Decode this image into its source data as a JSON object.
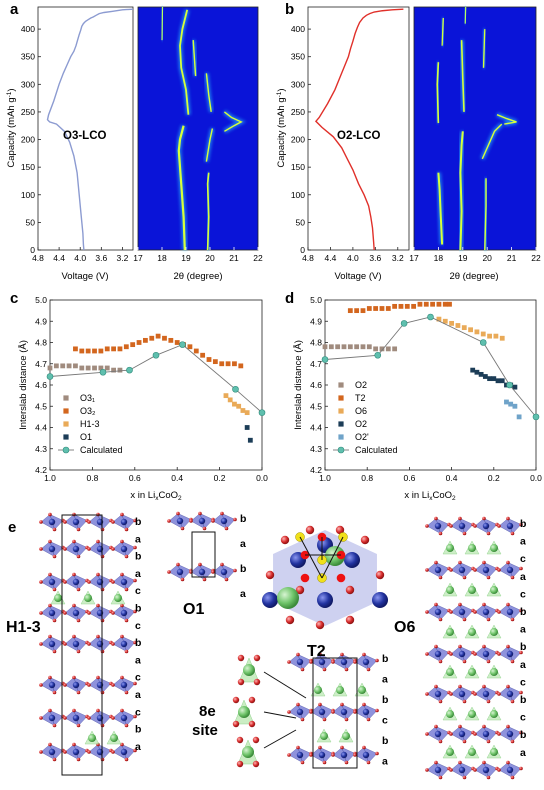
{
  "panels": {
    "a": {
      "letter": "a",
      "sample": "O3-LCO",
      "voltage_xlabel": "Voltage (V)",
      "xrd_xlabel": "2θ (degree)"
    },
    "b": {
      "letter": "b",
      "sample": "O2-LCO",
      "voltage_xlabel": "Voltage (V)",
      "xrd_xlabel": "2θ (degree)"
    },
    "c": {
      "letter": "c"
    },
    "d": {
      "letter": "d"
    },
    "e": {
      "letter": "e"
    }
  },
  "colors": {
    "o3_curve": "#8c9bd1",
    "o2_curve": "#e0302a",
    "xrd_bg": "#0a14d8",
    "calculated": "#5fbfae",
    "oxygen": "#d52a2a",
    "cobalt": "#2233a0",
    "lithium": "#6fc46a",
    "octa": "#7b7fd6"
  },
  "structure_labels": {
    "h13": "H1-3",
    "o1": "O1",
    "t2": "T2",
    "o6": "O6",
    "site_line1": "8e",
    "site_line2": "site",
    "h13_stack": [
      "b",
      "a",
      "b",
      "a",
      "c",
      "b",
      "c",
      "b",
      "a",
      "c",
      "a",
      "c",
      "b",
      "a"
    ],
    "o1_stack": [
      "b",
      "a",
      "b",
      "a"
    ],
    "t2_stack": [
      "b",
      "a",
      "b",
      "c",
      "b",
      "a"
    ],
    "o6_stack": [
      "b",
      "a",
      "c",
      "a",
      "c",
      "b",
      "a",
      "b",
      "a",
      "c",
      "b",
      "c",
      "b",
      "a"
    ]
  },
  "chart_data": [
    {
      "type": "line",
      "id": "a-voltage",
      "ylabel": "Capacity (mAh g⁻¹)",
      "xlabel": "Voltage (V)",
      "x_reversed": true,
      "xlim": [
        4.8,
        3.0
      ],
      "xticks": [
        4.8,
        4.4,
        4.0,
        3.6,
        3.2
      ],
      "ylim": [
        0,
        440
      ],
      "yticks": [
        0,
        50,
        100,
        150,
        200,
        250,
        300,
        350,
        400
      ],
      "series": [
        {
          "voltage": [
            3.93,
            3.94,
            3.95,
            3.98,
            4.02,
            4.06,
            4.12,
            4.2,
            4.3,
            4.45,
            4.58,
            4.62,
            4.6,
            4.5,
            4.4,
            4.32,
            4.25,
            4.18,
            4.12,
            4.08,
            4.05,
            4.02,
            3.99,
            3.97,
            3.94,
            3.9,
            3.85,
            3.8,
            3.75,
            3.7,
            3.64,
            3.55,
            3.4,
            3.2,
            3.0
          ],
          "capacity": [
            0,
            10,
            30,
            60,
            100,
            140,
            170,
            195,
            215,
            228,
            232,
            236,
            245,
            270,
            300,
            320,
            335,
            350,
            360,
            370,
            380,
            390,
            398,
            405,
            410,
            414,
            417,
            420,
            422,
            425,
            428,
            430,
            432,
            435,
            436
          ]
        }
      ]
    },
    {
      "type": "heatmap",
      "id": "a-xrd",
      "xlabel": "2θ (degree)",
      "xlim": [
        17,
        22
      ],
      "xticks": [
        17,
        18,
        19,
        20,
        21,
        22
      ],
      "ylim": [
        0,
        440
      ]
    },
    {
      "type": "line",
      "id": "b-voltage",
      "ylabel": "Capacity (mAh g⁻¹)",
      "xlabel": "Voltage (V)",
      "x_reversed": true,
      "xlim": [
        4.8,
        3.0
      ],
      "xticks": [
        4.8,
        4.4,
        4.0,
        3.6,
        3.2
      ],
      "ylim": [
        0,
        440
      ],
      "yticks": [
        0,
        50,
        100,
        150,
        200,
        250,
        300,
        350,
        400
      ],
      "series": [
        {
          "voltage": [
            3.62,
            3.63,
            3.65,
            3.68,
            3.72,
            3.8,
            3.9,
            4.0,
            4.1,
            4.2,
            4.35,
            4.55,
            4.66,
            4.6,
            4.45,
            4.32,
            4.22,
            4.14,
            4.08,
            4.04,
            4.0,
            3.96,
            3.92,
            3.88,
            3.82,
            3.76,
            3.7,
            3.62,
            3.5,
            3.3,
            3.1
          ],
          "capacity": [
            0,
            15,
            40,
            60,
            80,
            100,
            120,
            145,
            165,
            185,
            205,
            222,
            233,
            240,
            265,
            290,
            315,
            335,
            350,
            365,
            378,
            392,
            403,
            412,
            420,
            425,
            428,
            431,
            433,
            435,
            436
          ]
        }
      ]
    },
    {
      "type": "heatmap",
      "id": "b-xrd",
      "xlabel": "2θ (degree)",
      "xlim": [
        17,
        22
      ],
      "xticks": [
        17,
        18,
        19,
        20,
        21,
        22
      ],
      "ylim": [
        0,
        440
      ]
    },
    {
      "type": "scatter",
      "id": "c",
      "xlabel": "x in LixCoO2",
      "ylabel": "Interslab distance (Å)",
      "x_reversed": true,
      "xlim": [
        1.0,
        0.0
      ],
      "xticks": [
        1.0,
        0.8,
        0.6,
        0.4,
        0.2,
        0.0
      ],
      "ylim": [
        4.2,
        5.0
      ],
      "yticks": [
        4.2,
        4.3,
        4.4,
        4.5,
        4.6,
        4.7,
        4.8,
        4.9,
        5.0
      ],
      "legend": "bottom-left",
      "series": [
        {
          "name": "O3₁",
          "color": "#a08b7e",
          "marker": "square",
          "x": [
            1.0,
            0.97,
            0.94,
            0.91,
            0.88,
            0.85,
            0.82,
            0.79,
            0.76,
            0.73,
            0.7,
            0.67
          ],
          "y": [
            4.68,
            4.69,
            4.69,
            4.69,
            4.69,
            4.68,
            4.68,
            4.68,
            4.68,
            4.68,
            4.67,
            4.67
          ]
        },
        {
          "name": "O3₂",
          "color": "#d3661e",
          "marker": "square",
          "x": [
            0.88,
            0.85,
            0.82,
            0.79,
            0.76,
            0.73,
            0.7,
            0.67,
            0.64,
            0.61,
            0.58,
            0.55,
            0.52,
            0.49,
            0.46,
            0.43,
            0.4,
            0.37,
            0.34,
            0.31,
            0.28,
            0.25,
            0.22,
            0.19,
            0.16,
            0.13,
            0.1
          ],
          "y": [
            4.77,
            4.76,
            4.76,
            4.76,
            4.76,
            4.77,
            4.77,
            4.77,
            4.78,
            4.79,
            4.8,
            4.81,
            4.82,
            4.83,
            4.82,
            4.81,
            4.8,
            4.79,
            4.78,
            4.76,
            4.74,
            4.72,
            4.71,
            4.7,
            4.7,
            4.7,
            4.69
          ]
        },
        {
          "name": "H1-3",
          "color": "#e9aa58",
          "marker": "square",
          "x": [
            0.17,
            0.15,
            0.13,
            0.11,
            0.09,
            0.07
          ],
          "y": [
            4.55,
            4.53,
            4.51,
            4.5,
            4.48,
            4.47
          ]
        },
        {
          "name": "O1",
          "color": "#1c3d57",
          "marker": "square",
          "x": [
            0.07,
            0.055
          ],
          "y": [
            4.4,
            4.34
          ]
        },
        {
          "name": "Calculated",
          "color": "#5fbfae",
          "marker": "circle",
          "line": true,
          "x": [
            1.0,
            0.75,
            0.625,
            0.5,
            0.375,
            0.125,
            0.0
          ],
          "y": [
            4.64,
            4.66,
            4.67,
            4.74,
            4.79,
            4.58,
            4.47
          ]
        }
      ]
    },
    {
      "type": "scatter",
      "id": "d",
      "xlabel": "x in LixCoO2",
      "ylabel": "Interslab distance (Å)",
      "x_reversed": true,
      "xlim": [
        1.0,
        0.0
      ],
      "xticks": [
        1.0,
        0.8,
        0.6,
        0.4,
        0.2,
        0.0
      ],
      "ylim": [
        4.2,
        5.0
      ],
      "yticks": [
        4.2,
        4.3,
        4.4,
        4.5,
        4.6,
        4.7,
        4.8,
        4.9,
        5.0
      ],
      "legend": "bottom-left",
      "series": [
        {
          "name": "O2",
          "color": "#a08b7e",
          "marker": "square",
          "x": [
            1.0,
            0.97,
            0.94,
            0.91,
            0.88,
            0.85,
            0.82,
            0.79,
            0.76,
            0.73,
            0.7,
            0.67
          ],
          "y": [
            4.78,
            4.78,
            4.78,
            4.78,
            4.78,
            4.78,
            4.78,
            4.78,
            4.77,
            4.77,
            4.77,
            4.77
          ]
        },
        {
          "name": "T2",
          "color": "#d3661e",
          "marker": "square",
          "x": [
            0.88,
            0.85,
            0.82,
            0.79,
            0.76,
            0.73,
            0.7,
            0.67,
            0.64,
            0.61,
            0.58,
            0.55,
            0.52,
            0.49,
            0.46,
            0.43,
            0.41
          ],
          "y": [
            4.95,
            4.95,
            4.95,
            4.96,
            4.96,
            4.96,
            4.96,
            4.97,
            4.97,
            4.97,
            4.97,
            4.98,
            4.98,
            4.98,
            4.98,
            4.98,
            4.98
          ]
        },
        {
          "name": "O6",
          "color": "#e9aa58",
          "marker": "square",
          "x": [
            0.46,
            0.43,
            0.4,
            0.37,
            0.34,
            0.31,
            0.28,
            0.25,
            0.22,
            0.19,
            0.16
          ],
          "y": [
            4.91,
            4.9,
            4.89,
            4.88,
            4.87,
            4.86,
            4.85,
            4.84,
            4.83,
            4.83,
            4.82
          ]
        },
        {
          "name": "O2",
          "color": "#1c3d57",
          "marker": "square",
          "x": [
            0.3,
            0.28,
            0.26,
            0.24,
            0.22,
            0.2,
            0.18,
            0.16,
            0.14,
            0.12,
            0.1
          ],
          "y": [
            4.67,
            4.66,
            4.65,
            4.64,
            4.63,
            4.63,
            4.62,
            4.62,
            4.6,
            4.6,
            4.59
          ]
        },
        {
          "name": "O2'",
          "color": "#6fa3c9",
          "marker": "square",
          "x": [
            0.14,
            0.12,
            0.1,
            0.08
          ],
          "y": [
            4.52,
            4.51,
            4.5,
            4.45
          ]
        },
        {
          "name": "Calculated",
          "color": "#5fbfae",
          "marker": "circle",
          "line": true,
          "x": [
            1.0,
            0.75,
            0.625,
            0.5,
            0.25,
            0.125,
            0.0
          ],
          "y": [
            4.72,
            4.74,
            4.89,
            4.92,
            4.8,
            4.6,
            4.45
          ]
        }
      ]
    }
  ]
}
